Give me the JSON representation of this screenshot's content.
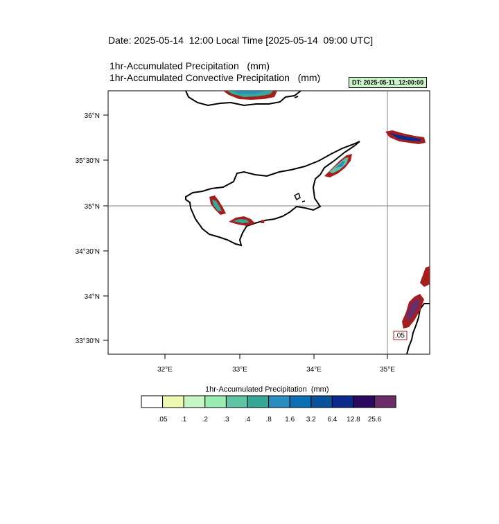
{
  "header": {
    "date_line": "Date: 2025-05-14  12:00 Local Time [2025-05-14  09:00 UTC]",
    "subtitle_1": "1hr-Accumulated Precipitation   (mm)",
    "subtitle_2": "1hr-Accumulated Convective Precipitation   (mm)",
    "dt_badge": "DT: 2025-05-11_12:00:00"
  },
  "map": {
    "lat_labels": [
      "36°N",
      "35°30'N",
      "35°N",
      "34°30'N",
      "34°N",
      "33°30'N"
    ],
    "lon_labels": [
      "32°E",
      "33°E",
      "34°E",
      "35°E"
    ],
    "contour_label": ".05",
    "colors": {
      "contour": "#a51e1e",
      "coastline": "#000000",
      "gridline": "#808080"
    }
  },
  "legend": {
    "title": "1hr-Accumulated Precipitation  (mm)",
    "labels": [
      ".05",
      ".1",
      ".2",
      ".3",
      ".4",
      ".8",
      "1.6",
      "3.2",
      "6.4",
      "12.8",
      "25.6"
    ],
    "colors": [
      "#ffffff",
      "#edf8b1",
      "#c7f5c4",
      "#99edb2",
      "#5ec4a4",
      "#37a896",
      "#2b8cbe",
      "#0a70b3",
      "#08529c",
      "#0b2a8c",
      "#2a0a5e",
      "#6b2c68"
    ]
  }
}
